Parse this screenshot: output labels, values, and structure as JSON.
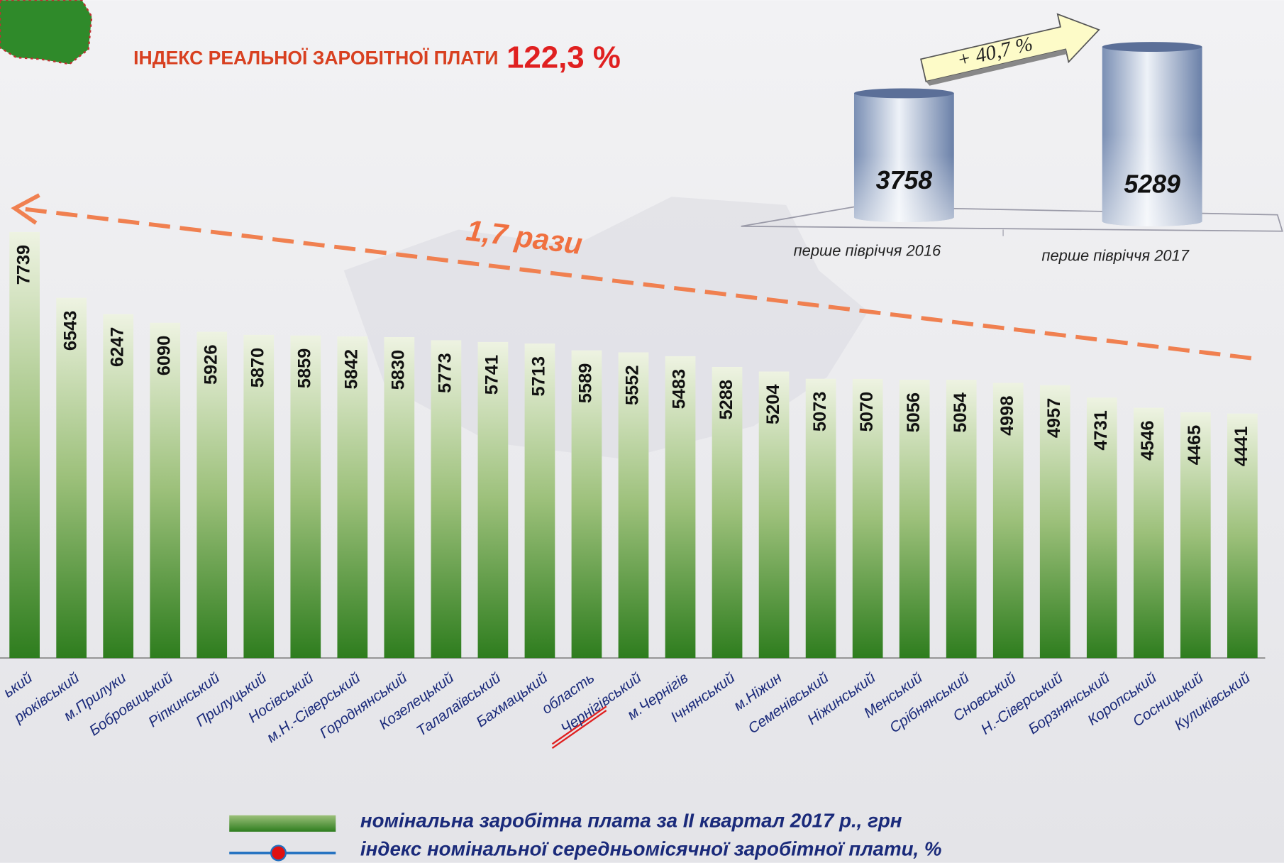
{
  "chart_data": [
    {
      "type": "bar",
      "title": "ІНДЕКС РЕАЛЬНОЇ ЗАРОБІТНОЇ ПЛАТИ",
      "subtitle": "122,3 %",
      "categories": [
        "ький",
        "рюківський",
        "м.Прилуки",
        "Бобровицький",
        "Ріпкинський",
        "Прилуцький",
        "Носівський",
        "м.Н.-Сіверський",
        "Городнянський",
        "Козелецький",
        "Талалаївський",
        "Бахмацький",
        "область",
        "Чернігівський",
        "м.Чернігів",
        "Ічнянський",
        "м.Ніжин",
        "Семенівський",
        "Ніжинський",
        "Менський",
        "Срібнянський",
        "Сновський",
        "Н.-Сіверський",
        "Борзнянський",
        "Коропський",
        "Сосницький",
        "Куликівський"
      ],
      "values": [
        7739,
        6543,
        6247,
        6090,
        5926,
        5870,
        5859,
        5842,
        5830,
        5773,
        5741,
        5713,
        5589,
        5552,
        5483,
        5288,
        5204,
        5073,
        5070,
        5056,
        5054,
        4998,
        4957,
        4731,
        4546,
        4465,
        4441
      ],
      "color": "#2e7d1e",
      "legend": [
        {
          "name": "номінальна заробітна плата за II квартал 2017 р., грн",
          "color": "#2e7d1e"
        },
        {
          "name": "індекс номінальної середньомісячної заробітної плати, %",
          "color": "#1f6fc0"
        }
      ],
      "annotations": [
        "1,7 рази"
      ]
    },
    {
      "type": "cylinder",
      "categories": [
        "перше півріччя 2016",
        "перше півріччя 2017"
      ],
      "values": [
        3758,
        5289
      ],
      "color": "#8fa3c4",
      "annotations": [
        "+ 40,7 %"
      ]
    }
  ]
}
